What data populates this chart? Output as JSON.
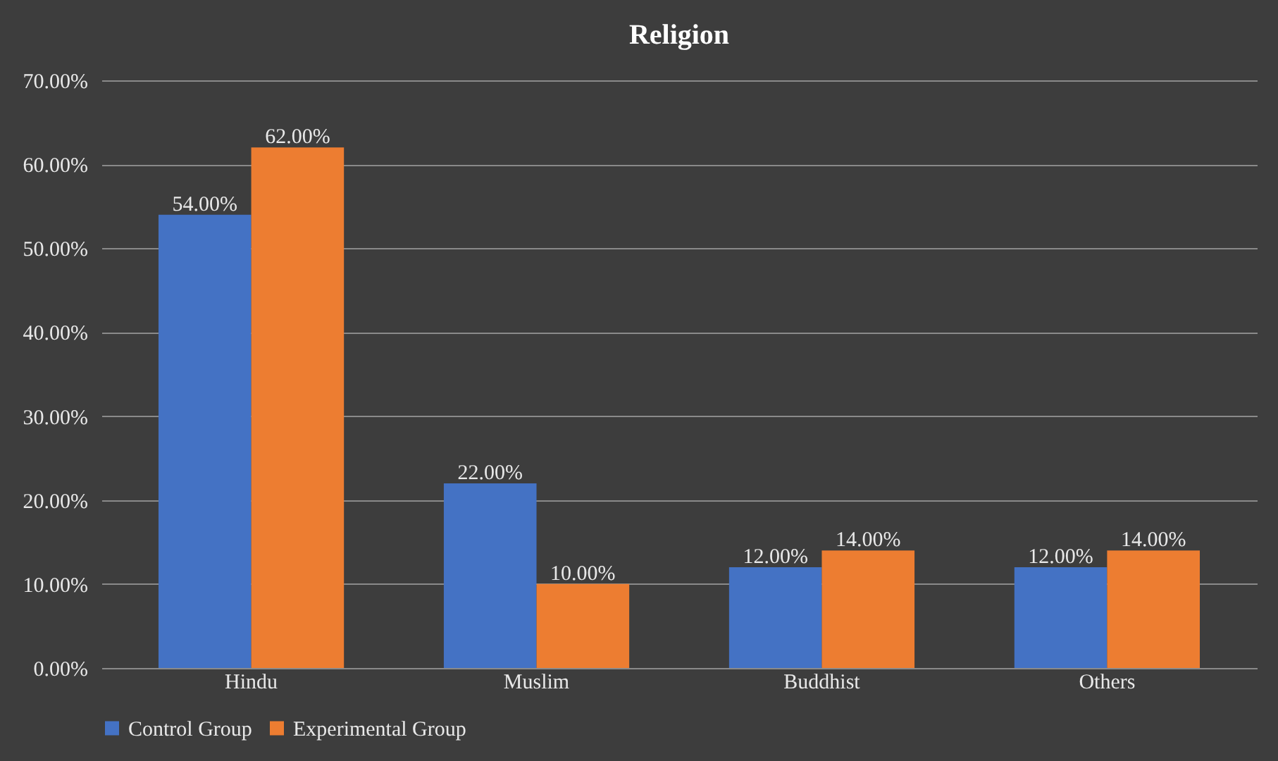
{
  "chart_data": {
    "type": "bar",
    "title": "Religion",
    "categories": [
      "Hindu",
      "Muslim",
      "Buddhist",
      "Others"
    ],
    "series": [
      {
        "name": "Control Group",
        "color": "#4472c4",
        "values": [
          54,
          22,
          12,
          12
        ],
        "value_labels": [
          "54.00%",
          "22.00%",
          "12.00%",
          "12.00%"
        ]
      },
      {
        "name": "Experimental Group",
        "color": "#ed7d31",
        "values": [
          62,
          10,
          14,
          14
        ],
        "value_labels": [
          "62.00%",
          "10.00%",
          "14.00%",
          "14.00%"
        ]
      }
    ],
    "ylim": [
      0,
      70
    ],
    "yticks": [
      {
        "value": 0,
        "label": "0.00%"
      },
      {
        "value": 10,
        "label": "10.00%"
      },
      {
        "value": 20,
        "label": "20.00%"
      },
      {
        "value": 30,
        "label": "30.00%"
      },
      {
        "value": 40,
        "label": "40.00%"
      },
      {
        "value": 50,
        "label": "50.00%"
      },
      {
        "value": 60,
        "label": "60.00%"
      },
      {
        "value": 70,
        "label": "70.00%"
      }
    ],
    "grid": "y",
    "legend": "bottom"
  }
}
